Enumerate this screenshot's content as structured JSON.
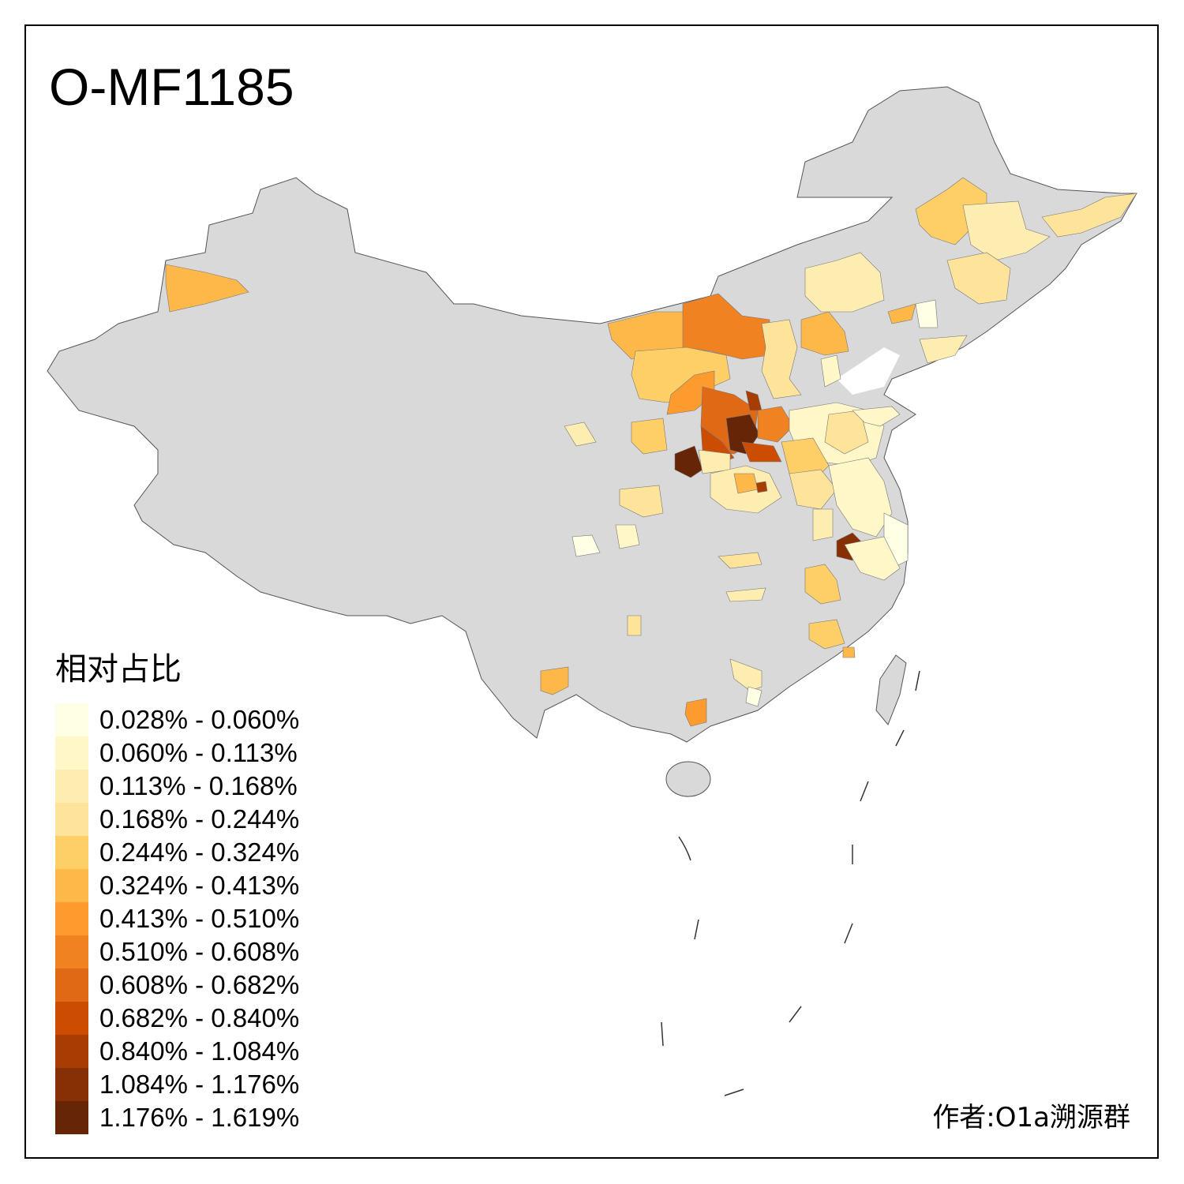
{
  "title": "O-MF1185",
  "legend": {
    "title": "相对占比",
    "items": [
      {
        "label": "0.028% - 0.060%",
        "color": "#FFFFE5"
      },
      {
        "label": "0.060% - 0.113%",
        "color": "#FFF7C8"
      },
      {
        "label": "0.113% - 0.168%",
        "color": "#FEEDB0"
      },
      {
        "label": "0.168% - 0.244%",
        "color": "#FEE39A"
      },
      {
        "label": "0.244% - 0.324%",
        "color": "#FECF66"
      },
      {
        "label": "0.324% - 0.413%",
        "color": "#FEB84A"
      },
      {
        "label": "0.413% - 0.510%",
        "color": "#FE9B2E"
      },
      {
        "label": "0.510% - 0.608%",
        "color": "#F08222"
      },
      {
        "label": "0.608% - 0.682%",
        "color": "#E06916"
      },
      {
        "label": "0.682% - 0.840%",
        "color": "#CC4C02"
      },
      {
        "label": "0.840% - 1.084%",
        "color": "#A83D03"
      },
      {
        "label": "1.084% - 1.176%",
        "color": "#873005"
      },
      {
        "label": "1.176% - 1.619%",
        "color": "#662506"
      }
    ]
  },
  "no_data_color": "#D9D9D9",
  "credit": "作者:O1a溯源群"
}
